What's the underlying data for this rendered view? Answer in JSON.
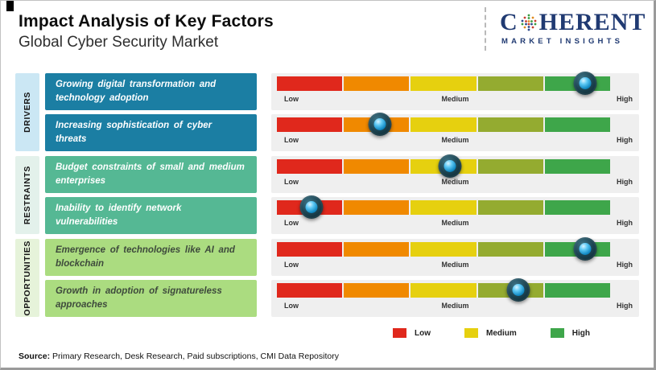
{
  "header": {
    "title": "Impact Analysis of Key Factors",
    "subtitle": "Global Cyber Security Market",
    "logo": {
      "part1": "C",
      "part2": "HERENT",
      "tagline": "MARKET INSIGHTS",
      "color": "#203a72"
    }
  },
  "scale_labels": {
    "low": "Low",
    "medium": "Medium",
    "high": "High"
  },
  "sections": [
    {
      "name": "DRIVERS",
      "strip_color": "#cbe7f4",
      "box_color": "#1b7ea3",
      "factors": [
        {
          "label": "Growing digital transformation and technology adoption",
          "impact_percent": 92.5
        },
        {
          "label": "Increasing sophistication of cyber threats",
          "impact_percent": 31
        }
      ]
    },
    {
      "name": "RESTRAINTS",
      "strip_color": "#e3f1eb",
      "box_color": "#55b894",
      "factors": [
        {
          "label": "Budget constraints of small and medium enterprises",
          "impact_percent": 52
        },
        {
          "label": "Inability to identify network vulnerabilities",
          "impact_percent": 10.5
        }
      ]
    },
    {
      "name": "OPPORTUNITIES",
      "strip_color": "#e6f3da",
      "box_color": "#abdc80",
      "factors": [
        {
          "label": "Emergence of technologies like AI and blockchain",
          "impact_percent": 92.5
        },
        {
          "label": "Growth in adoption of signatureless approaches",
          "impact_percent": 72.5
        }
      ]
    }
  ],
  "bar_segment_colors": [
    "#e0281c",
    "#f08900",
    "#e6d00f",
    "#94ab30",
    "#3ea64a"
  ],
  "legend": [
    {
      "label": "Low",
      "color": "#e0281c"
    },
    {
      "label": "Medium",
      "color": "#e6d00f"
    },
    {
      "label": "High",
      "color": "#3ea64a"
    }
  ],
  "source": {
    "label": "Source:",
    "text": " Primary Research, Desk Research, Paid subscriptions, CMI Data Repository"
  },
  "chart_data": {
    "type": "bar",
    "title": "Impact Analysis of Key Factors",
    "subtitle": "Global Cyber Security Market",
    "scale": [
      "Low",
      "Medium",
      "High"
    ],
    "legend": [
      "Low",
      "Medium",
      "High"
    ],
    "legend_position": "bottom",
    "series": [
      {
        "group": "Drivers",
        "factor": "Growing digital transformation and technology adoption",
        "impact_percent": 92.5,
        "impact_level": "High"
      },
      {
        "group": "Drivers",
        "factor": "Increasing sophistication of cyber threats",
        "impact_percent": 31,
        "impact_level": "Low-Medium"
      },
      {
        "group": "Restraints",
        "factor": "Budget constraints of small and medium enterprises",
        "impact_percent": 52,
        "impact_level": "Medium"
      },
      {
        "group": "Restraints",
        "factor": "Inability to identify network vulnerabilities",
        "impact_percent": 10.5,
        "impact_level": "Low"
      },
      {
        "group": "Opportunities",
        "factor": "Emergence of technologies like AI and blockchain",
        "impact_percent": 92.5,
        "impact_level": "High"
      },
      {
        "group": "Opportunities",
        "factor": "Growth in adoption of signatureless approaches",
        "impact_percent": 72.5,
        "impact_level": "Medium-High"
      }
    ]
  }
}
